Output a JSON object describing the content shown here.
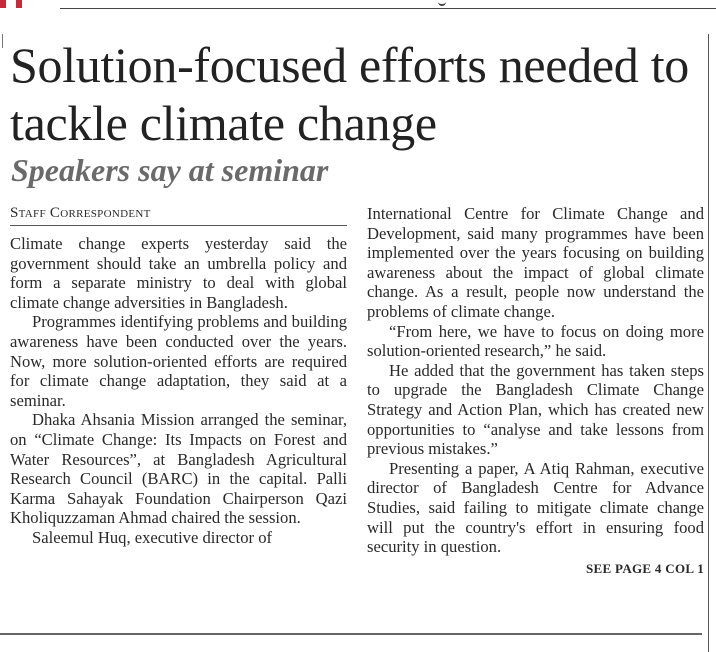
{
  "headline": "Solution-focused efforts needed to tackle climate change",
  "subhead": "Speakers say at seminar",
  "byline": "Staff Correspondent",
  "left_column": [
    "Climate change experts yesterday said the government should take an umbrella policy and form a separate ministry to deal with global climate change adversities in Bangladesh.",
    "Programmes identifying problems and building awareness have been conducted over the years. Now, more solution-oriented efforts are required for climate change adaptation, they said at a seminar.",
    "Dhaka Ahsania Mission arranged the seminar, on “Climate Change: Its Impacts on Forest and Water Resources”, at Bangladesh Agricultural Research Council (BARC) in the capital. Palli Karma Sahayak Foundation Chairperson Qazi Kholiquzzaman Ahmad chaired the session.",
    "Saleemul Huq, executive director of"
  ],
  "right_column": [
    "International Centre for Climate Change and Development, said many programmes have been implemented over the years focusing on building awareness about the impact of global climate change. As a result, people now understand the problems of climate change.",
    "“From here, we have to focus on doing more solution-oriented research,” he said.",
    "He added that the government has taken steps to upgrade the Bangladesh Climate Change Strategy and Action Plan, which has created new opportunities to “analyse and take lessons from previous mistakes.”",
    "Presenting a paper, A Atiq Rahman, executive director of Bangladesh Centre for Advance Studies, said failing to mitigate climate change will put the country's effort in ensuring food security in question."
  ],
  "continuation": "SEE PAGE 4 COL 1",
  "colors": {
    "accent_red": "#c8283a",
    "subhead_gray": "#6a6a6a"
  }
}
